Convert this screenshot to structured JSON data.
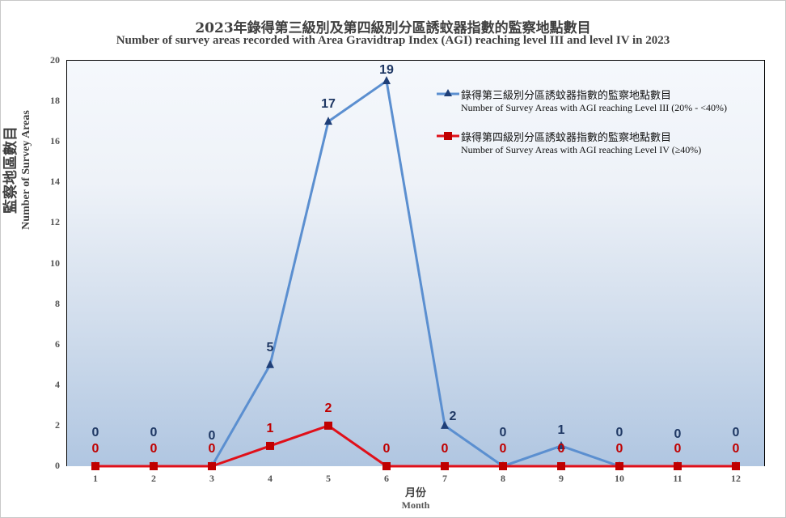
{
  "chart_data": {
    "type": "line",
    "title": "2023年錄得第三級別及第四級別分區誘蚊器指數的監察地點數目",
    "subtitle": "Number of survey areas recorded with Area Gravidtrap Index (AGI) reaching level III and level IV in 2023",
    "xlabel_zh": "月份",
    "xlabel": "Month",
    "ylabel_zh": "監察地區數目",
    "ylabel": "Number of Survey Areas",
    "x": [
      1,
      2,
      3,
      4,
      5,
      6,
      7,
      8,
      9,
      10,
      11,
      12
    ],
    "categories": [
      "1",
      "2",
      "3",
      "4",
      "5",
      "6",
      "7",
      "8",
      "9",
      "10",
      "11",
      "12"
    ],
    "yticks": [
      "0",
      "2",
      "4",
      "6",
      "8",
      "10",
      "12",
      "14",
      "16",
      "18",
      "20"
    ],
    "ylim": [
      0,
      20
    ],
    "grid": false,
    "legend_position": "upper right (inside plot)",
    "series": [
      {
        "name_zh": "錄得第三級別分區誘蚊器指數的監察地點數目",
        "name": "Number of Survey Areas with AGI reaching Level III (20% - <40%)",
        "color": "#5b8fd0",
        "marker": "triangle",
        "marker_color": "#1f3f78",
        "label_color": "#1f3864",
        "values": [
          0,
          0,
          0,
          5,
          17,
          19,
          2,
          0,
          1,
          0,
          0,
          0
        ]
      },
      {
        "name_zh": "錄得第四級別分區誘蚊器指數的監察地點數目",
        "name": "Number of Survey Areas with AGI reaching Level IV (≥40%)",
        "color": "#e0101a",
        "marker": "square",
        "marker_color": "#c00000",
        "label_color": "#c00000",
        "values": [
          0,
          0,
          0,
          1,
          2,
          0,
          0,
          0,
          0,
          0,
          0,
          0
        ]
      }
    ]
  }
}
